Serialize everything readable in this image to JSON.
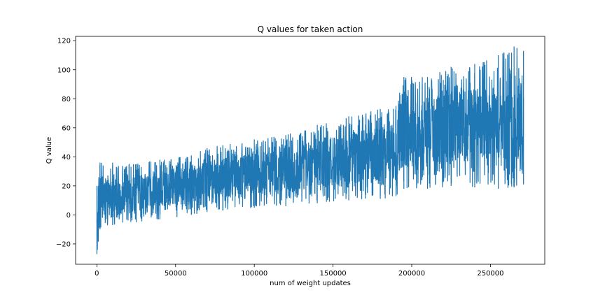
{
  "chart_data": {
    "type": "line",
    "title": "Q values for taken action",
    "xlabel": "num of weight updates",
    "ylabel": "Q value",
    "xlim": [
      -13500,
      284500
    ],
    "ylim": [
      -34,
      123
    ],
    "xticks": [
      0,
      50000,
      100000,
      150000,
      200000,
      250000
    ],
    "xtick_labels": [
      "0",
      "50000",
      "100000",
      "150000",
      "200000",
      "250000"
    ],
    "yticks": [
      -20,
      0,
      20,
      40,
      60,
      80,
      100,
      120
    ],
    "ytick_labels": [
      "−20",
      "0",
      "20",
      "40",
      "60",
      "80",
      "100",
      "120"
    ],
    "grid": false,
    "legend": "none",
    "series": [
      {
        "color": "#1f77b4",
        "description": "dense noisy signal; envelope given as lower/upper Q value vs update index",
        "x": [
          0,
          2000,
          10000,
          25000,
          40000,
          60000,
          70000,
          80000,
          100000,
          120000,
          140000,
          160000,
          180000,
          190000,
          195000,
          210000,
          225000,
          240000,
          255000,
          265000,
          271000
        ],
        "lower": [
          -27,
          -10,
          -7,
          -5,
          -3,
          0,
          2,
          3,
          5,
          6,
          8,
          10,
          11,
          13,
          18,
          18,
          20,
          19,
          18,
          19,
          21
        ],
        "upper": [
          20,
          36,
          36,
          35,
          38,
          41,
          46,
          48,
          52,
          55,
          62,
          68,
          73,
          75,
          95,
          95,
          102,
          104,
          110,
          116,
          113
        ]
      }
    ]
  }
}
